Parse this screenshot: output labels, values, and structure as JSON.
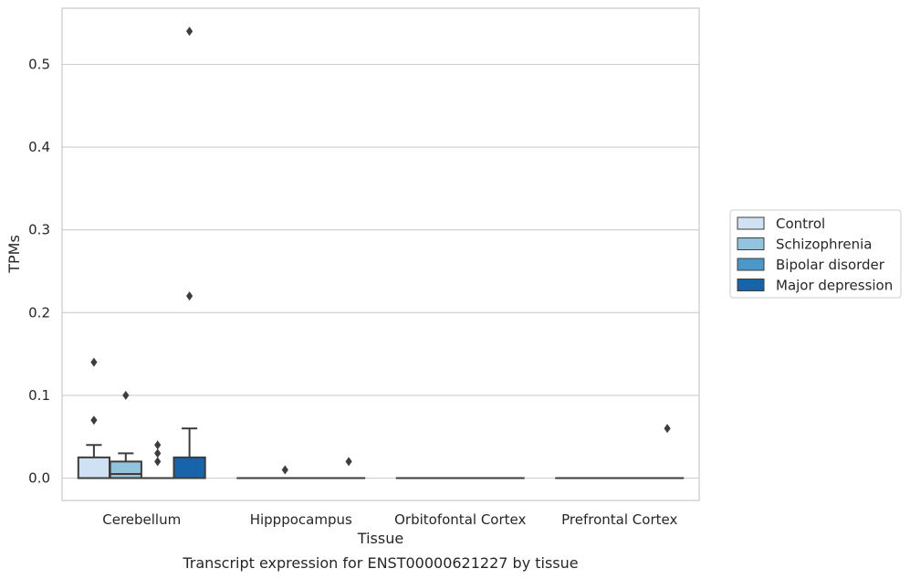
{
  "chart_data": {
    "type": "box",
    "xlabel": "Tissue",
    "ylabel": "TPMs",
    "caption": "Transcript expression for ENST00000621227 by tissue",
    "categories": [
      "Cerebellum",
      "Hipppocampus",
      "Orbitofontal Cortex",
      "Prefrontal Cortex"
    ],
    "ylim": [
      -0.026,
      0.567
    ],
    "yticks": [
      0.0,
      0.1,
      0.2,
      0.3,
      0.4,
      0.5
    ],
    "ytick_labels": [
      "0.0",
      "0.1",
      "0.2",
      "0.3",
      "0.4",
      "0.5"
    ],
    "grid": true,
    "legend_position": "right",
    "series": [
      {
        "name": "Control",
        "color": "#cfe1f2",
        "boxes": [
          {
            "q1": 0.0,
            "median": 0.0,
            "q3": 0.025,
            "whisker_low": 0.0,
            "whisker_high": 0.04,
            "outliers": [
              0.07,
              0.14
            ]
          },
          {
            "q1": 0.0,
            "median": 0.0,
            "q3": 0.0,
            "whisker_low": 0.0,
            "whisker_high": 0.0,
            "outliers": []
          },
          {
            "q1": 0.0,
            "median": 0.0,
            "q3": 0.0,
            "whisker_low": 0.0,
            "whisker_high": 0.0,
            "outliers": []
          },
          {
            "q1": 0.0,
            "median": 0.0,
            "q3": 0.0,
            "whisker_low": 0.0,
            "whisker_high": 0.0,
            "outliers": []
          }
        ]
      },
      {
        "name": "Schizophrenia",
        "color": "#93c4de",
        "boxes": [
          {
            "q1": 0.0,
            "median": 0.005,
            "q3": 0.02,
            "whisker_low": 0.0,
            "whisker_high": 0.03,
            "outliers": [
              0.1
            ]
          },
          {
            "q1": 0.0,
            "median": 0.0,
            "q3": 0.0,
            "whisker_low": 0.0,
            "whisker_high": 0.0,
            "outliers": [
              0.01
            ]
          },
          {
            "q1": 0.0,
            "median": 0.0,
            "q3": 0.0,
            "whisker_low": 0.0,
            "whisker_high": 0.0,
            "outliers": []
          },
          {
            "q1": 0.0,
            "median": 0.0,
            "q3": 0.0,
            "whisker_low": 0.0,
            "whisker_high": 0.0,
            "outliers": []
          }
        ]
      },
      {
        "name": "Bipolar disorder",
        "color": "#4a98c9",
        "boxes": [
          {
            "q1": 0.0,
            "median": 0.0,
            "q3": 0.0,
            "whisker_low": 0.0,
            "whisker_high": 0.0,
            "outliers": [
              0.02,
              0.03,
              0.04
            ]
          },
          {
            "q1": 0.0,
            "median": 0.0,
            "q3": 0.0,
            "whisker_low": 0.0,
            "whisker_high": 0.0,
            "outliers": []
          },
          {
            "q1": 0.0,
            "median": 0.0,
            "q3": 0.0,
            "whisker_low": 0.0,
            "whisker_high": 0.0,
            "outliers": []
          },
          {
            "q1": 0.0,
            "median": 0.0,
            "q3": 0.0,
            "whisker_low": 0.0,
            "whisker_high": 0.0,
            "outliers": []
          }
        ]
      },
      {
        "name": "Major depression",
        "color": "#1764ab",
        "boxes": [
          {
            "q1": 0.0,
            "median": 0.0,
            "q3": 0.025,
            "whisker_low": 0.0,
            "whisker_high": 0.06,
            "outliers": [
              0.22,
              0.54
            ]
          },
          {
            "q1": 0.0,
            "median": 0.0,
            "q3": 0.0,
            "whisker_low": 0.0,
            "whisker_high": 0.0,
            "outliers": [
              0.02
            ]
          },
          {
            "q1": 0.0,
            "median": 0.0,
            "q3": 0.0,
            "whisker_low": 0.0,
            "whisker_high": 0.0,
            "outliers": []
          },
          {
            "q1": 0.0,
            "median": 0.0,
            "q3": 0.0,
            "whisker_low": 0.0,
            "whisker_high": 0.0,
            "outliers": [
              0.06
            ]
          }
        ]
      }
    ]
  }
}
